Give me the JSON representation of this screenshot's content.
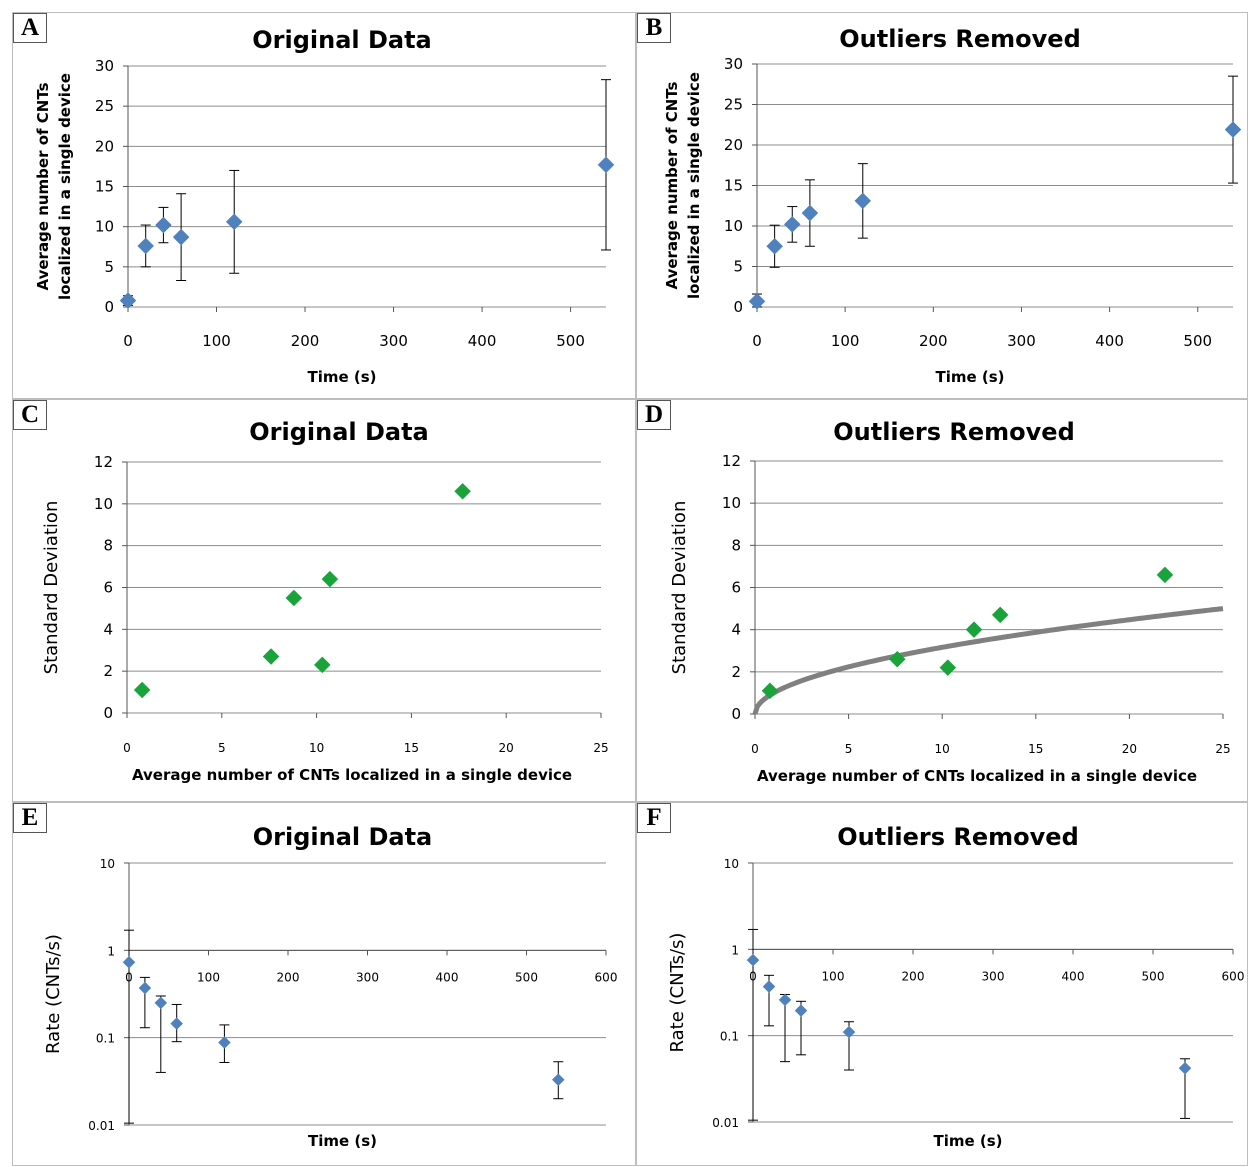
{
  "chart_data": [
    {
      "panel": "A",
      "type": "scatter",
      "title": "Original Data",
      "xlabel": "Time (s)",
      "ylabel": [
        "Average number of CNTs",
        "localized in a single device"
      ],
      "xlim": [
        0,
        540
      ],
      "ylim": [
        0,
        30
      ],
      "xticks": [
        "0",
        "100",
        "200",
        "300",
        "400",
        "500"
      ],
      "yticks": [
        "0",
        "5",
        "10",
        "15",
        "20",
        "25",
        "30"
      ],
      "grid": "horizontal",
      "marker_color": "#4f81bd",
      "series": [
        {
          "x": [
            0,
            20,
            40,
            60,
            120,
            540
          ],
          "y": [
            0.8,
            7.6,
            10.2,
            8.7,
            10.6,
            17.7
          ],
          "err": [
            0.6,
            2.6,
            2.2,
            5.4,
            6.4,
            10.6
          ]
        }
      ]
    },
    {
      "panel": "B",
      "type": "scatter",
      "title": "Outliers Removed",
      "xlabel": "Time (s)",
      "ylabel": [
        "Average number of CNTs",
        "localized in a single device"
      ],
      "xlim": [
        0,
        540
      ],
      "ylim": [
        0,
        30
      ],
      "xticks": [
        "0",
        "100",
        "200",
        "300",
        "400",
        "500"
      ],
      "yticks": [
        "0",
        "5",
        "10",
        "15",
        "20",
        "25",
        "30"
      ],
      "grid": "horizontal",
      "marker_color": "#4f81bd",
      "series": [
        {
          "x": [
            0,
            20,
            40,
            60,
            120,
            540
          ],
          "y": [
            0.7,
            7.5,
            10.2,
            11.6,
            13.1,
            21.9
          ],
          "err": [
            0.9,
            2.6,
            2.2,
            4.1,
            4.6,
            6.6
          ]
        }
      ]
    },
    {
      "panel": "C",
      "type": "scatter",
      "title": "Original Data",
      "xlabel": "Average number of CNTs localized in a single device",
      "ylabel": "Standard Deviation",
      "xlim": [
        0,
        25
      ],
      "ylim": [
        0,
        12
      ],
      "xticks": [
        "0",
        "5",
        "10",
        "15",
        "20",
        "25"
      ],
      "yticks": [
        "0",
        "2",
        "4",
        "6",
        "8",
        "10",
        "12"
      ],
      "grid": "horizontal",
      "marker_color": "#1aa33a",
      "series": [
        {
          "x": [
            0.8,
            7.6,
            8.8,
            10.3,
            10.7,
            17.7
          ],
          "y": [
            1.1,
            2.7,
            5.5,
            2.3,
            6.4,
            10.6
          ]
        }
      ]
    },
    {
      "panel": "D",
      "type": "scatter",
      "title": "Outliers Removed",
      "xlabel": "Average number of CNTs localized in a single device",
      "ylabel": "Standard Deviation",
      "xlim": [
        0,
        25
      ],
      "ylim": [
        0,
        12
      ],
      "xticks": [
        "0",
        "5",
        "10",
        "15",
        "20",
        "25"
      ],
      "yticks": [
        "0",
        "2",
        "4",
        "6",
        "8",
        "10",
        "12"
      ],
      "grid": "horizontal",
      "marker_color": "#1aa33a",
      "trendline": {
        "form": "y = a*sqrt(x)",
        "a": 1.0,
        "color": "#808080"
      },
      "series": [
        {
          "x": [
            0.8,
            7.6,
            10.3,
            11.7,
            13.1,
            21.9
          ],
          "y": [
            1.1,
            2.6,
            2.2,
            4.0,
            4.7,
            6.6
          ]
        }
      ]
    },
    {
      "panel": "E",
      "type": "scatter",
      "title": "Original Data",
      "xlabel": "Time (s)",
      "ylabel": "Rate (CNTs/s)",
      "xlim": [
        0,
        600
      ],
      "ylim": [
        0.01,
        10
      ],
      "yscale": "log",
      "xticks": [
        "0",
        "100",
        "200",
        "300",
        "400",
        "500",
        "600"
      ],
      "yticks": [
        "0.01",
        "0.1",
        "1",
        "10"
      ],
      "grid": "horizontal",
      "marker_color": "#4f81bd",
      "series": [
        {
          "x": [
            0,
            20,
            40,
            60,
            120,
            540
          ],
          "y": [
            0.73,
            0.37,
            0.25,
            0.145,
            0.088,
            0.033
          ],
          "err_low": [
            0.73,
            0.24,
            0.21,
            0.055,
            0.036,
            0.013
          ],
          "err_high": [
            1.7,
            0.49,
            0.3,
            0.24,
            0.14,
            0.053
          ]
        }
      ]
    },
    {
      "panel": "F",
      "type": "scatter",
      "title": "Outliers Removed",
      "xlabel": "Time (s)",
      "ylabel": "Rate (CNTs/s)",
      "xlim": [
        0,
        600
      ],
      "ylim": [
        0.01,
        10
      ],
      "yscale": "log",
      "xticks": [
        "0",
        "100",
        "200",
        "300",
        "400",
        "500",
        "600"
      ],
      "yticks": [
        "0.01",
        "0.1",
        "1",
        "10"
      ],
      "grid": "horizontal",
      "marker_color": "#4f81bd",
      "series": [
        {
          "x": [
            0,
            20,
            40,
            60,
            120,
            540
          ],
          "y": [
            0.75,
            0.37,
            0.26,
            0.195,
            0.11,
            0.042
          ],
          "err_low": [
            0.75,
            0.24,
            0.21,
            0.135,
            0.07,
            0.031
          ],
          "err_high": [
            1.7,
            0.5,
            0.3,
            0.25,
            0.145,
            0.054
          ]
        }
      ]
    }
  ]
}
